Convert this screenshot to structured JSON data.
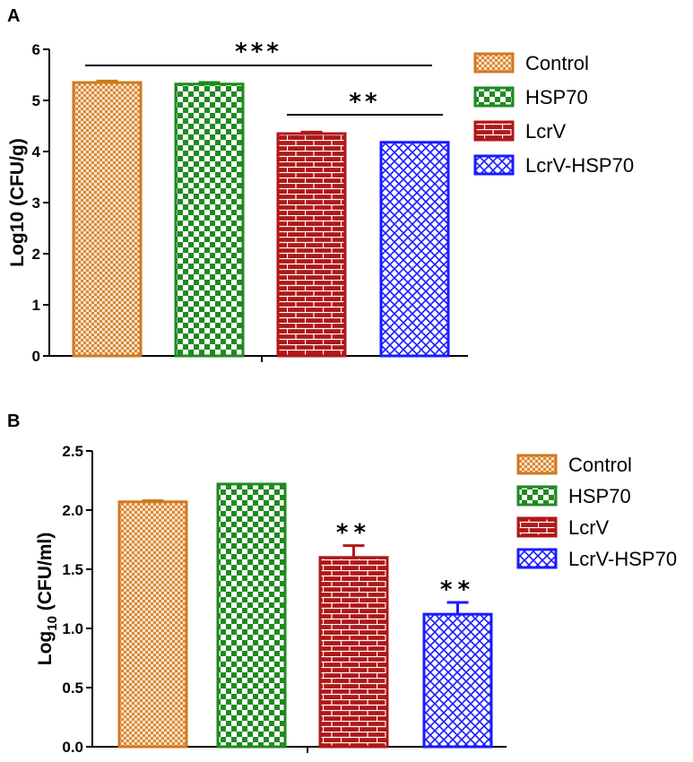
{
  "chart_data": [
    {
      "panel_label": "A",
      "type": "bar",
      "categories": [
        "Control",
        "HSP70",
        "LcrV",
        "LcrV-HSP70"
      ],
      "values": [
        5.35,
        5.32,
        4.35,
        4.18
      ],
      "errors": [
        0.03,
        0.03,
        0.03,
        0.0
      ],
      "ylabel": "Log10 (CFU/g)",
      "ylim": [
        0,
        6
      ],
      "yticks": [
        "0",
        "1",
        "2",
        "3",
        "4",
        "5",
        "6"
      ],
      "legend": [
        "Control",
        "HSP70",
        "LcrV",
        "LcrV-HSP70"
      ],
      "legend_position": "right",
      "annotations": [
        {
          "text": "***",
          "from": "Control",
          "to": "LcrV-HSP70"
        },
        {
          "text": "**",
          "from": "LcrV",
          "to": "LcrV-HSP70"
        }
      ]
    },
    {
      "panel_label": "B",
      "type": "bar",
      "categories": [
        "Control",
        "HSP70",
        "LcrV",
        "LcrV-HSP70"
      ],
      "values": [
        2.07,
        2.22,
        1.6,
        1.12
      ],
      "errors": [
        0.01,
        0.0,
        0.1,
        0.1
      ],
      "ylabel": "Log10 (CFU/ml)",
      "ylabel_main": "Log",
      "ylabel_sub": "10",
      "ylabel_rest": " (CFU/ml)",
      "ylim": [
        0,
        2.5
      ],
      "yticks": [
        "0.0",
        "0.5",
        "1.0",
        "1.5",
        "2.0",
        "2.5"
      ],
      "legend": [
        "Control",
        "HSP70",
        "LcrV",
        "LcrV-HSP70"
      ],
      "legend_position": "right",
      "annotations": [
        {
          "text": "**",
          "bar": "LcrV"
        },
        {
          "text": "**",
          "bar": "LcrV-HSP70"
        }
      ]
    }
  ],
  "colors": {
    "Control": "#d07a1e",
    "HSP70": "#1f8a1f",
    "LcrV": "#b01818",
    "LcrV-HSP70": "#1a1aff"
  }
}
